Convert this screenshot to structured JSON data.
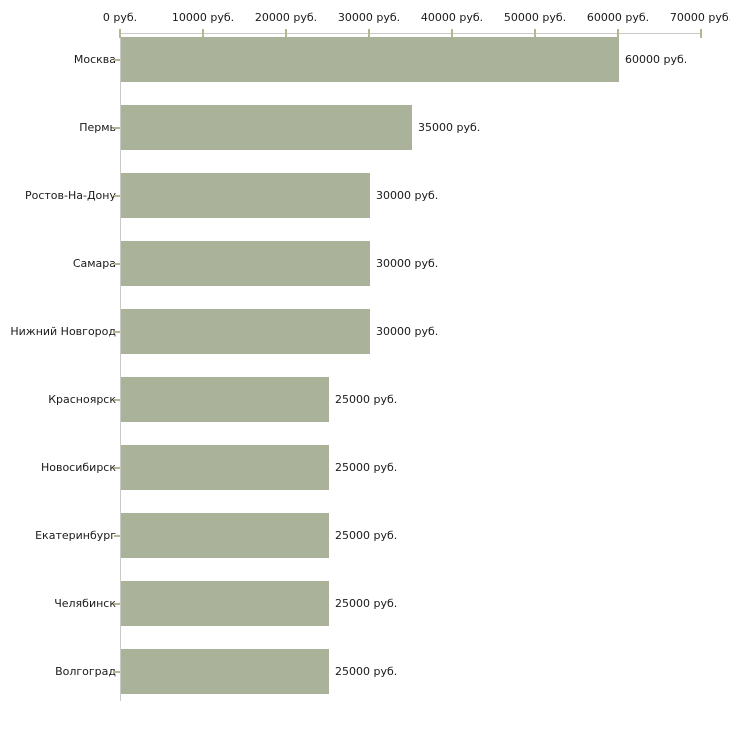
{
  "chart_data": {
    "type": "bar",
    "orientation": "horizontal",
    "title": "",
    "xlabel": "",
    "ylabel": "",
    "categories": [
      "Москва",
      "Пермь",
      "Ростов-На-Дону",
      "Самара",
      "Нижний Новгород",
      "Красноярск",
      "Новосибирск",
      "Екатеринбург",
      "Челябинск",
      "Волгоград"
    ],
    "values": [
      60000,
      35000,
      30000,
      30000,
      30000,
      25000,
      25000,
      25000,
      25000,
      25000
    ],
    "value_labels": [
      "60000 руб.",
      "35000 руб.",
      "30000 руб.",
      "30000 руб.",
      "30000 руб.",
      "25000 руб.",
      "25000 руб.",
      "25000 руб.",
      "25000 руб.",
      "25000 руб."
    ],
    "x_tick_labels": [
      "0 руб.",
      "10000 руб.",
      "20000 руб.",
      "30000 руб.",
      "40000 руб.",
      "50000 руб.",
      "60000 руб.",
      "70000 руб."
    ],
    "x_tick_values": [
      0,
      10000,
      20000,
      30000,
      40000,
      50000,
      60000,
      70000
    ],
    "xlim": [
      0,
      70000
    ],
    "grid": false,
    "legend": null,
    "colors": {
      "bar_fill": "#abb29a",
      "tick_mark": "#b6b791",
      "axis_line": "#c9c9c9",
      "text": "#1a1a1a",
      "background": "#ffffff"
    }
  }
}
